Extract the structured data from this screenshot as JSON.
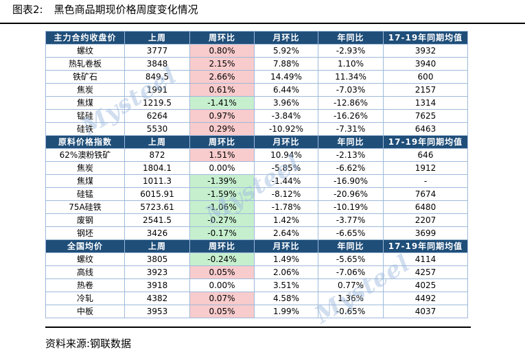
{
  "figure_label": "图表2:",
  "title": "黑色商品期现价格周度变化情况",
  "watermark": "Mysteel",
  "source": "资料来源:钢联数据",
  "sections": [
    {
      "header": [
        "主力合约收盘价",
        "上周",
        "周环比",
        "月环比",
        "年同比",
        "17-19年同期均值"
      ],
      "rows": [
        {
          "name": "螺纹",
          "last": "3777",
          "wow": "0.80%",
          "mom": "5.92%",
          "yoy": "-2.93%",
          "avg": "3932",
          "wow_color": "red"
        },
        {
          "name": "热轧卷板",
          "last": "3848",
          "wow": "2.15%",
          "mom": "7.88%",
          "yoy": "1.10%",
          "avg": "3940",
          "wow_color": "red"
        },
        {
          "name": "铁矿石",
          "last": "849.5",
          "wow": "2.66%",
          "mom": "14.49%",
          "yoy": "11.34%",
          "avg": "600",
          "wow_color": "red"
        },
        {
          "name": "焦炭",
          "last": "1991",
          "wow": "0.61%",
          "mom": "6.44%",
          "yoy": "-7.03%",
          "avg": "2157",
          "wow_color": "red"
        },
        {
          "name": "焦煤",
          "last": "1219.5",
          "wow": "-1.41%",
          "mom": "3.96%",
          "yoy": "-12.86%",
          "avg": "1314",
          "wow_color": "green"
        },
        {
          "name": "锰硅",
          "last": "6264",
          "wow": "0.97%",
          "mom": "-3.84%",
          "yoy": "-16.26%",
          "avg": "7625",
          "wow_color": "red"
        },
        {
          "name": "硅铁",
          "last": "5530",
          "wow": "0.29%",
          "mom": "-10.92%",
          "yoy": "-7.31%",
          "avg": "6463",
          "wow_color": "red"
        }
      ]
    },
    {
      "header": [
        "原料价格指数",
        "上周",
        "周环比",
        "月环比",
        "年同比",
        "17-19年同期均值"
      ],
      "rows": [
        {
          "name": "62%澳粉铁矿",
          "last": "872",
          "wow": "1.51%",
          "mom": "10.94%",
          "yoy": "-2.13%",
          "avg": "646",
          "wow_color": "red"
        },
        {
          "name": "焦炭",
          "last": "1804.1",
          "wow": "0.00%",
          "mom": "-5.85%",
          "yoy": "-6.62%",
          "avg": "1912",
          "wow_color": "none"
        },
        {
          "name": "焦煤",
          "last": "1011.3",
          "wow": "-1.39%",
          "mom": "-1.44%",
          "yoy": "-16.90%",
          "avg": "-",
          "wow_color": "green"
        },
        {
          "name": "硅锰",
          "last": "6015.91",
          "wow": "-1.59%",
          "mom": "-8.12%",
          "yoy": "-20.96%",
          "avg": "7674",
          "wow_color": "green"
        },
        {
          "name": "75A硅铁",
          "last": "5723.61",
          "wow": "-1.06%",
          "mom": "-1.78%",
          "yoy": "-10.19%",
          "avg": "6480",
          "wow_color": "green"
        },
        {
          "name": "废钢",
          "last": "2541.5",
          "wow": "-0.27%",
          "mom": "1.42%",
          "yoy": "-3.77%",
          "avg": "2207",
          "wow_color": "green"
        },
        {
          "name": "钢坯",
          "last": "3426",
          "wow": "-0.17%",
          "mom": "2.64%",
          "yoy": "-6.65%",
          "avg": "3699",
          "wow_color": "green"
        }
      ]
    },
    {
      "header": [
        "全国均价",
        "上周",
        "周环比",
        "月环比",
        "年同比",
        "17-19年同期均值"
      ],
      "rows": [
        {
          "name": "螺纹",
          "last": "3805",
          "wow": "-0.24%",
          "mom": "1.49%",
          "yoy": "-5.65%",
          "avg": "4114",
          "wow_color": "green"
        },
        {
          "name": "高线",
          "last": "3923",
          "wow": "0.05%",
          "mom": "2.06%",
          "yoy": "-7.06%",
          "avg": "4257",
          "wow_color": "red"
        },
        {
          "name": "热卷",
          "last": "3918",
          "wow": "0.00%",
          "mom": "3.51%",
          "yoy": "0.77%",
          "avg": "4025",
          "wow_color": "none"
        },
        {
          "name": "冷轧",
          "last": "4382",
          "wow": "0.07%",
          "mom": "4.58%",
          "yoy": "1.36%",
          "avg": "4492",
          "wow_color": "red"
        },
        {
          "name": "中板",
          "last": "3953",
          "wow": "0.05%",
          "mom": "1.99%",
          "yoy": "-0.65%",
          "avg": "4037",
          "wow_color": "red"
        }
      ]
    }
  ]
}
